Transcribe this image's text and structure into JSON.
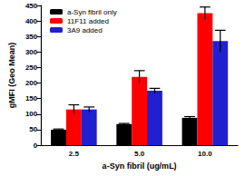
{
  "chart_data": {
    "type": "bar",
    "categories": [
      "2.5",
      "5.0",
      "10.0"
    ],
    "series": [
      {
        "name": "a-Syn fibril only",
        "color": "#000000",
        "values": [
          50,
          68,
          88
        ],
        "errors": [
          2,
          2,
          4
        ]
      },
      {
        "name": "11F11 added",
        "color": "#ff0000",
        "values": [
          115,
          220,
          425
        ],
        "errors": [
          15,
          20,
          20
        ]
      },
      {
        "name": "3A9 added",
        "color": "#2020d0",
        "values": [
          115,
          175,
          335
        ],
        "errors": [
          8,
          8,
          35
        ]
      }
    ],
    "x_label": "a-Syn fibril (ug/mL)",
    "y_label": "gMFI (Geo Mean)",
    "ylim": [
      0,
      450
    ],
    "yticks": [
      0,
      50,
      100,
      150,
      200,
      250,
      300,
      350,
      400,
      450
    ],
    "legend": "upper left",
    "grid": false
  }
}
